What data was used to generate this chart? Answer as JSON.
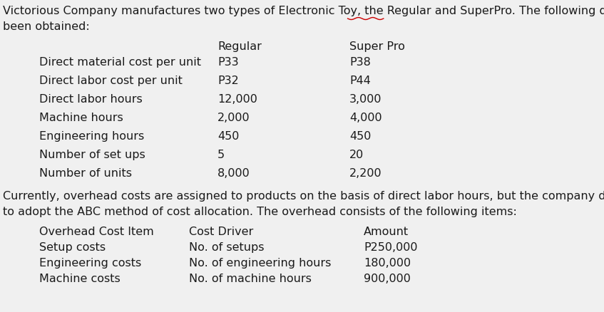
{
  "title_line1": "Victorious Company manufactures two types of Electronic Toy, the Regular and SuperPro. The following data have",
  "title_line2": "been obtained:",
  "superpro_word": "SuperPro",
  "col_headers": [
    "Regular",
    "Super Pro"
  ],
  "row_labels": [
    "Direct material cost per unit",
    "Direct labor cost per unit",
    "Direct labor hours",
    "Machine hours",
    "Engineering hours",
    "Number of set ups",
    "Number of units"
  ],
  "regular_values": [
    "P33",
    "P32",
    "12,000",
    "2,000",
    "450",
    "5",
    "8,000"
  ],
  "superpro_values": [
    "P38",
    "P44",
    "3,000",
    "4,000",
    "450",
    "20",
    "2,200"
  ],
  "paragraph_line1": "Currently, overhead costs are assigned to products on the basis of direct labor hours, but the company decided",
  "paragraph_line2": "to adopt the ABC method of cost allocation. The overhead consists of the following items:",
  "table2_headers": [
    "Overhead Cost Item",
    "Cost Driver",
    "Amount"
  ],
  "overhead_items": [
    "Setup costs",
    "Engineering costs",
    "Machine costs"
  ],
  "cost_drivers": [
    "No. of setups",
    "No. of engineering hours",
    "No. of machine hours"
  ],
  "amounts": [
    "P250,000",
    "180,000",
    "900,000"
  ],
  "bg_color": "#f0f0f0",
  "text_color": "#1a1a1a",
  "font_size": 11.5,
  "wavy_color": "#cc0000"
}
